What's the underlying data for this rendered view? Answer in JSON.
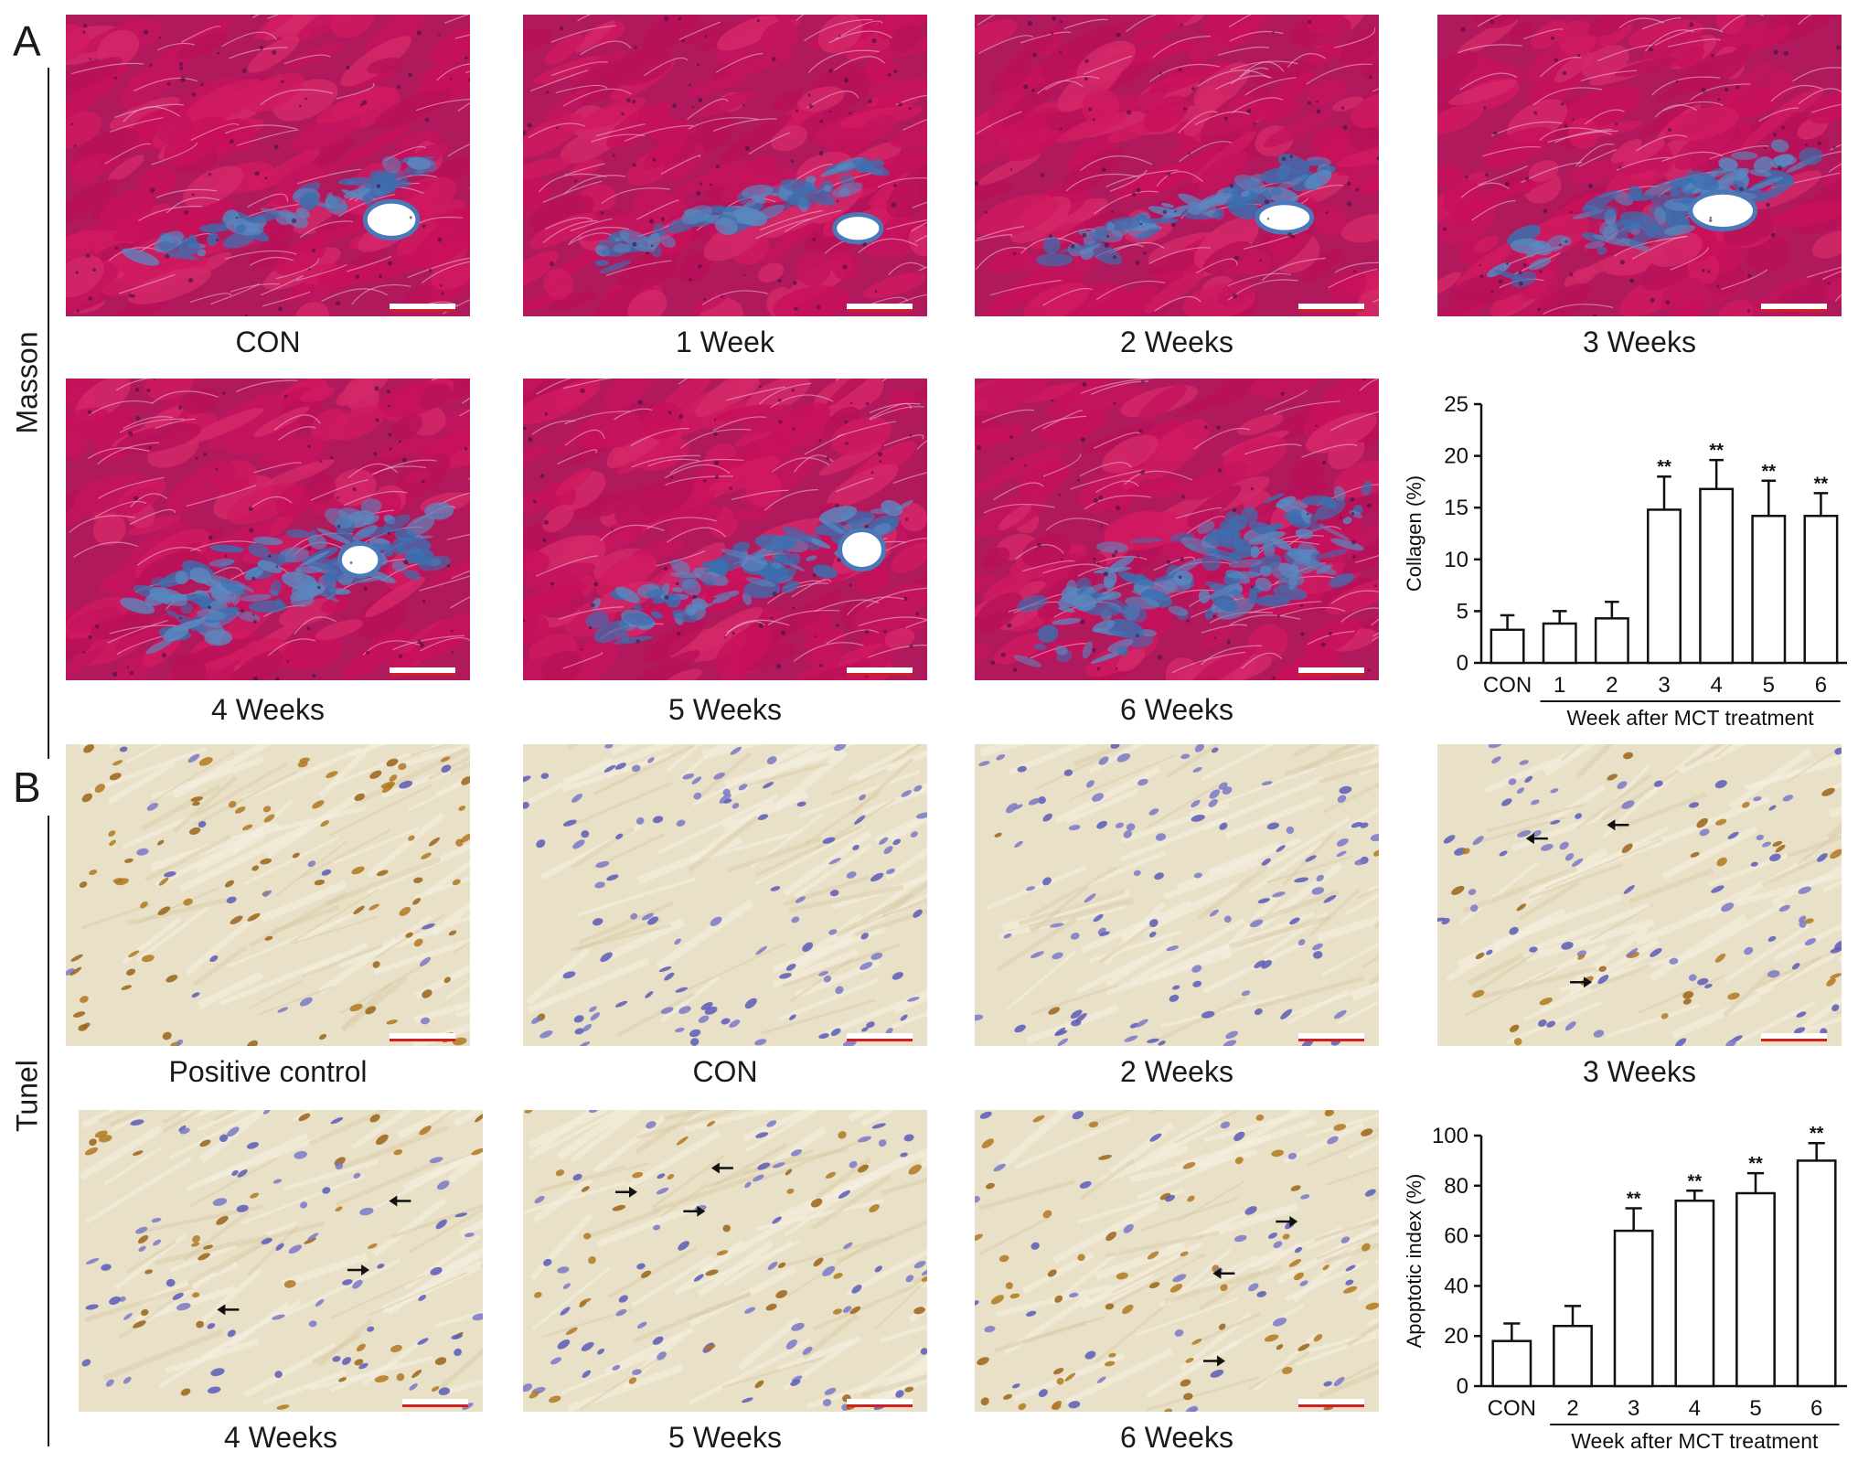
{
  "panels": {
    "A": {
      "letter": "A",
      "row_label": "Masson",
      "tiles": [
        {
          "caption": "CON",
          "stain": "masson",
          "fibrosis": 0.18,
          "vessel": true
        },
        {
          "caption": "1 Week",
          "stain": "masson",
          "fibrosis": 0.2,
          "vessel": true
        },
        {
          "caption": "2 Weeks",
          "stain": "masson",
          "fibrosis": 0.22,
          "vessel": true
        },
        {
          "caption": "3 Weeks",
          "stain": "masson",
          "fibrosis": 0.4,
          "vessel": true
        },
        {
          "caption": "4 Weeks",
          "stain": "masson",
          "fibrosis": 0.6,
          "vessel": true
        },
        {
          "caption": "5 Weeks",
          "stain": "masson",
          "fibrosis": 0.4,
          "vessel": true
        },
        {
          "caption": "6 Weeks",
          "stain": "masson",
          "fibrosis": 0.7,
          "vessel": false
        }
      ]
    },
    "B": {
      "letter": "B",
      "row_label": "Tunel",
      "tiles": [
        {
          "caption": "Positive control",
          "stain": "tunel",
          "positive": 0.85
        },
        {
          "caption": "CON",
          "stain": "tunel",
          "positive": 0.02
        },
        {
          "caption": "2 Weeks",
          "stain": "tunel",
          "positive": 0.05
        },
        {
          "caption": "3 Weeks",
          "stain": "tunel",
          "positive": 0.3
        },
        {
          "caption": "4 Weeks",
          "stain": "tunel",
          "positive": 0.35
        },
        {
          "caption": "5 Weeks",
          "stain": "tunel",
          "positive": 0.4
        },
        {
          "caption": "6 Weeks",
          "stain": "tunel",
          "positive": 0.55
        }
      ]
    }
  },
  "chart_data": [
    {
      "type": "bar",
      "categories": [
        "CON",
        "1",
        "2",
        "3",
        "4",
        "5",
        "6"
      ],
      "values": [
        3.2,
        3.8,
        4.3,
        14.8,
        16.8,
        14.2,
        14.2
      ],
      "errors": [
        1.4,
        1.2,
        1.6,
        3.2,
        2.8,
        3.4,
        2.2
      ],
      "significance": [
        "",
        "",
        "",
        "**",
        "**",
        "**",
        "**"
      ],
      "ylabel": "Collagen (%)",
      "xlabel": "Week after MCT treatment",
      "ylim": [
        0,
        25
      ],
      "yticks": [
        0,
        5,
        10,
        15,
        20,
        25
      ],
      "xlabel_span": [
        "1",
        "6"
      ]
    },
    {
      "type": "bar",
      "categories": [
        "CON",
        "2",
        "3",
        "4",
        "5",
        "6"
      ],
      "values": [
        18,
        24,
        62,
        74,
        77,
        90
      ],
      "errors": [
        7,
        8,
        9,
        4,
        8,
        7
      ],
      "significance": [
        "",
        "",
        "**",
        "**",
        "**",
        "**"
      ],
      "ylabel": "Apoptotic index (%)",
      "xlabel": "Week after MCT treatment",
      "ylim": [
        0,
        100
      ],
      "yticks": [
        0,
        20,
        40,
        60,
        80,
        100
      ],
      "xlabel_span": [
        "2",
        "6"
      ]
    }
  ],
  "colors": {
    "masson_red": "#c8105a",
    "masson_blue": "#3a6fb0",
    "tunel_bg": "#e9e0c8",
    "tunel_brown": "#9a6418",
    "tunel_blue": "#5a5ab8"
  }
}
